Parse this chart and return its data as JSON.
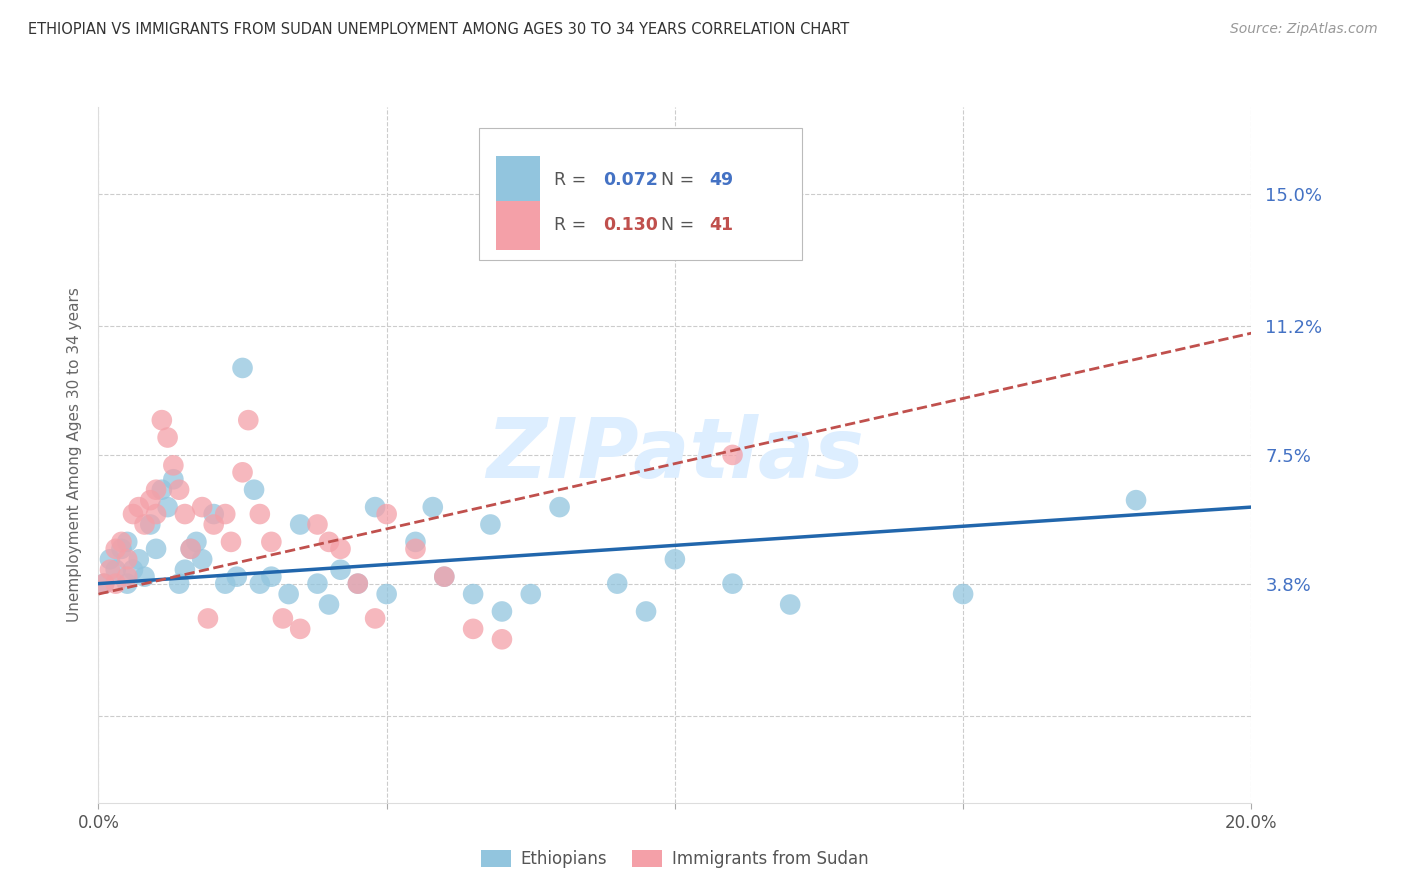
{
  "title": "ETHIOPIAN VS IMMIGRANTS FROM SUDAN UNEMPLOYMENT AMONG AGES 30 TO 34 YEARS CORRELATION CHART",
  "source": "Source: ZipAtlas.com",
  "ylabel": "Unemployment Among Ages 30 to 34 years",
  "xlim": [
    0.0,
    0.2
  ],
  "ylim": [
    -0.025,
    0.175
  ],
  "ytick_positions": [
    0.0,
    0.038,
    0.075,
    0.112,
    0.15
  ],
  "ytick_labels": [
    "",
    "3.8%",
    "7.5%",
    "11.2%",
    "15.0%"
  ],
  "xtick_positions": [
    0.0,
    0.05,
    0.1,
    0.15,
    0.2
  ],
  "xtick_labels": [
    "0.0%",
    "",
    "",
    "",
    "20.0%"
  ],
  "blue_color": "#92c5de",
  "pink_color": "#f4a0a8",
  "blue_line_color": "#2166ac",
  "pink_line_color": "#c0504d",
  "blue_R": "0.072",
  "blue_N": "49",
  "pink_R": "0.130",
  "pink_N": "41",
  "legend_text_color": "#555555",
  "legend_blue_val_color": "#4472c4",
  "legend_pink_val_color": "#c0504d",
  "right_axis_color": "#4472c4",
  "watermark_color": "#ddeeff",
  "grid_color": "#cccccc",
  "title_color": "#333333",
  "source_color": "#999999",
  "ylabel_color": "#666666",
  "blue_x": [
    0.001,
    0.002,
    0.003,
    0.004,
    0.005,
    0.005,
    0.006,
    0.007,
    0.008,
    0.009,
    0.01,
    0.011,
    0.012,
    0.013,
    0.014,
    0.015,
    0.016,
    0.017,
    0.018,
    0.02,
    0.022,
    0.024,
    0.025,
    0.027,
    0.028,
    0.03,
    0.033,
    0.035,
    0.038,
    0.04,
    0.042,
    0.045,
    0.048,
    0.05,
    0.055,
    0.058,
    0.06,
    0.065,
    0.068,
    0.07,
    0.075,
    0.08,
    0.09,
    0.095,
    0.1,
    0.11,
    0.12,
    0.15,
    0.18
  ],
  "blue_y": [
    0.038,
    0.045,
    0.042,
    0.048,
    0.05,
    0.038,
    0.042,
    0.045,
    0.04,
    0.055,
    0.048,
    0.065,
    0.06,
    0.068,
    0.038,
    0.042,
    0.048,
    0.05,
    0.045,
    0.058,
    0.038,
    0.04,
    0.1,
    0.065,
    0.038,
    0.04,
    0.035,
    0.055,
    0.038,
    0.032,
    0.042,
    0.038,
    0.06,
    0.035,
    0.05,
    0.06,
    0.04,
    0.035,
    0.055,
    0.03,
    0.035,
    0.06,
    0.038,
    0.03,
    0.045,
    0.038,
    0.032,
    0.035,
    0.062
  ],
  "pink_x": [
    0.001,
    0.002,
    0.003,
    0.003,
    0.004,
    0.005,
    0.005,
    0.006,
    0.007,
    0.008,
    0.009,
    0.01,
    0.01,
    0.011,
    0.012,
    0.013,
    0.014,
    0.015,
    0.016,
    0.018,
    0.019,
    0.02,
    0.022,
    0.023,
    0.025,
    0.026,
    0.028,
    0.03,
    0.032,
    0.035,
    0.038,
    0.04,
    0.042,
    0.045,
    0.048,
    0.05,
    0.055,
    0.06,
    0.065,
    0.07,
    0.11
  ],
  "pink_y": [
    0.038,
    0.042,
    0.048,
    0.038,
    0.05,
    0.045,
    0.04,
    0.058,
    0.06,
    0.055,
    0.062,
    0.058,
    0.065,
    0.085,
    0.08,
    0.072,
    0.065,
    0.058,
    0.048,
    0.06,
    0.028,
    0.055,
    0.058,
    0.05,
    0.07,
    0.085,
    0.058,
    0.05,
    0.028,
    0.025,
    0.055,
    0.05,
    0.048,
    0.038,
    0.028,
    0.058,
    0.048,
    0.04,
    0.025,
    0.022,
    0.075
  ],
  "blue_line_x0": 0.0,
  "blue_line_y0": 0.038,
  "blue_line_x1": 0.2,
  "blue_line_y1": 0.06,
  "pink_line_x0": 0.0,
  "pink_line_y0": 0.035,
  "pink_line_x1": 0.2,
  "pink_line_y1": 0.11
}
